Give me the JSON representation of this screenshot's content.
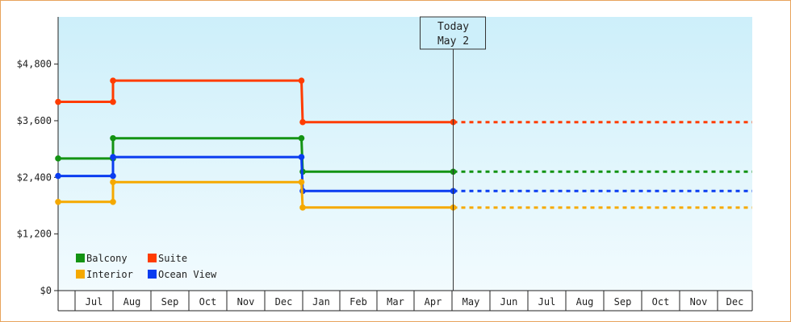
{
  "chart_data": {
    "type": "line",
    "subtype": "step",
    "x_type": "date",
    "ylim": [
      0,
      5800
    ],
    "y_ticks": [
      {
        "value": 0,
        "label": "$0"
      },
      {
        "value": 1200,
        "label": "$1,200"
      },
      {
        "value": 2400,
        "label": "$2,400"
      },
      {
        "value": 3600,
        "label": "$3,600"
      },
      {
        "value": 4800,
        "label": "$4,800"
      }
    ],
    "x_start": "2024-06-01",
    "x_end": "2025-12-31",
    "x_tick_labels": [
      {
        "label": "Jul",
        "start": "2024-07-01",
        "end": "2024-08-01"
      },
      {
        "label": "Aug",
        "start": "2024-08-01",
        "end": "2024-09-01"
      },
      {
        "label": "Sep",
        "start": "2024-09-01",
        "end": "2024-10-01"
      },
      {
        "label": "Oct",
        "start": "2024-10-01",
        "end": "2024-11-01"
      },
      {
        "label": "Nov",
        "start": "2024-11-01",
        "end": "2024-12-01"
      },
      {
        "label": "Dec",
        "start": "2024-12-01",
        "end": "2025-01-01"
      },
      {
        "label": "Jan",
        "start": "2025-01-01",
        "end": "2025-02-01"
      },
      {
        "label": "Feb",
        "start": "2025-02-01",
        "end": "2025-03-01"
      },
      {
        "label": "Mar",
        "start": "2025-03-01",
        "end": "2025-04-01"
      },
      {
        "label": "Apr",
        "start": "2025-04-01",
        "end": "2025-05-01"
      },
      {
        "label": "May",
        "start": "2025-05-01",
        "end": "2025-06-01"
      },
      {
        "label": "Jun",
        "start": "2025-06-01",
        "end": "2025-07-01"
      },
      {
        "label": "Jul",
        "start": "2025-07-01",
        "end": "2025-08-01"
      },
      {
        "label": "Aug",
        "start": "2025-08-01",
        "end": "2025-09-01"
      },
      {
        "label": "Sep",
        "start": "2025-09-01",
        "end": "2025-10-01"
      },
      {
        "label": "Oct",
        "start": "2025-10-01",
        "end": "2025-11-01"
      },
      {
        "label": "Nov",
        "start": "2025-11-01",
        "end": "2025-12-01"
      },
      {
        "label": "Dec",
        "start": "2025-12-01",
        "end": "2025-12-31"
      }
    ],
    "today": {
      "date": "2025-05-02",
      "label_line1": "Today",
      "label_line2": "May 2"
    },
    "projection_end": "2025-12-31",
    "series": [
      {
        "name": "Suite",
        "color": "#ff3c00",
        "points": [
          [
            "2024-06-01",
            4000
          ],
          [
            "2024-08-01",
            4000
          ],
          [
            "2024-08-01",
            4450
          ],
          [
            "2024-12-31",
            4450
          ],
          [
            "2025-01-01",
            3570
          ],
          [
            "2025-05-02",
            3570
          ]
        ]
      },
      {
        "name": "Balcony",
        "color": "#139313",
        "points": [
          [
            "2024-06-01",
            2800
          ],
          [
            "2024-08-01",
            2800
          ],
          [
            "2024-08-01",
            3230
          ],
          [
            "2024-12-31",
            3230
          ],
          [
            "2025-01-01",
            2520
          ],
          [
            "2025-05-02",
            2520
          ]
        ]
      },
      {
        "name": "Ocean View",
        "color": "#0a3cf0",
        "points": [
          [
            "2024-06-01",
            2430
          ],
          [
            "2024-08-01",
            2430
          ],
          [
            "2024-08-01",
            2830
          ],
          [
            "2024-12-31",
            2830
          ],
          [
            "2025-01-01",
            2110
          ],
          [
            "2025-05-02",
            2110
          ]
        ]
      },
      {
        "name": "Interior",
        "color": "#f5a900",
        "points": [
          [
            "2024-06-01",
            1880
          ],
          [
            "2024-08-01",
            1880
          ],
          [
            "2024-08-01",
            2300
          ],
          [
            "2024-12-31",
            2300
          ],
          [
            "2025-01-01",
            1760
          ],
          [
            "2025-05-02",
            1760
          ]
        ]
      }
    ],
    "legend": [
      {
        "name": "Balcony",
        "color": "#139313"
      },
      {
        "name": "Suite",
        "color": "#ff3c00"
      },
      {
        "name": "Interior",
        "color": "#f5a900"
      },
      {
        "name": "Ocean View",
        "color": "#0a3cf0"
      }
    ],
    "legend_placement": "bottom-left",
    "grid": false,
    "background_gradient": [
      "#cdeffa",
      "#f2fbfe"
    ]
  }
}
